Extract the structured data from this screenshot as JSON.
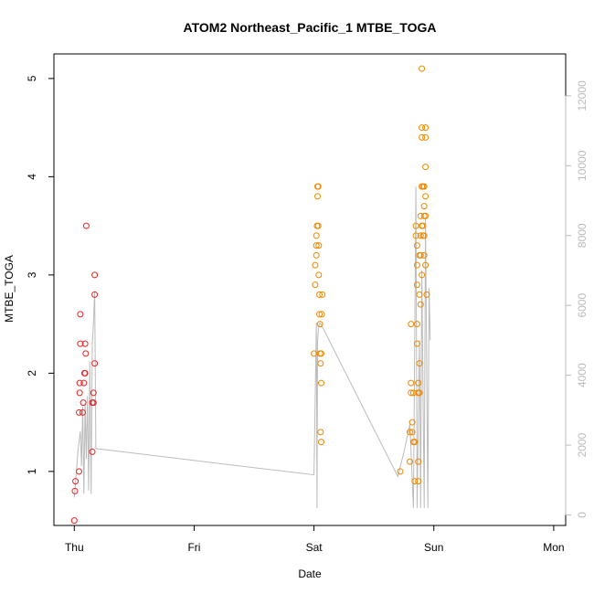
{
  "chart_data": {
    "type": "scatter",
    "title": "ATOM2 Northeast_Pacific_1 MTBE_TOGA",
    "xlabel": "Date",
    "ylabel": "MTBE_TOGA",
    "x_ticks": [
      "Thu",
      "Fri",
      "Sat",
      "Sun",
      "Mon"
    ],
    "xlim_days": [
      -0.17,
      4.1
    ],
    "ylim": [
      0.45,
      5.25
    ],
    "y_ticks": [
      1,
      2,
      3,
      4,
      5
    ],
    "secondary_axis": {
      "ylim": [
        -300,
        13200
      ],
      "ticks": [
        0,
        2000,
        4000,
        6000,
        8000,
        10000,
        12000
      ],
      "color": "#bbbbbb",
      "line_series": {
        "color": "#bbbbbb",
        "points": [
          [
            0.0,
            500
          ],
          [
            0.01,
            900
          ],
          [
            0.03,
            1800
          ],
          [
            0.05,
            2400
          ],
          [
            0.06,
            1400
          ],
          [
            0.07,
            3100
          ],
          [
            0.08,
            600
          ],
          [
            0.09,
            3200
          ],
          [
            0.1,
            1600
          ],
          [
            0.11,
            3400
          ],
          [
            0.12,
            700
          ],
          [
            0.13,
            4400
          ],
          [
            0.14,
            600
          ],
          [
            0.15,
            4900
          ],
          [
            0.16,
            5500
          ],
          [
            0.17,
            6400
          ],
          [
            0.18,
            1900
          ],
          [
            2.0,
            1150
          ],
          [
            2.02,
            5500
          ],
          [
            2.025,
            200
          ],
          [
            2.03,
            5000
          ],
          [
            2.04,
            5400
          ],
          [
            2.05,
            5500
          ],
          [
            2.06,
            5450
          ],
          [
            2.7,
            1100
          ],
          [
            2.75,
            1800
          ],
          [
            2.8,
            2600
          ],
          [
            2.83,
            200
          ],
          [
            2.85,
            9400
          ],
          [
            2.86,
            200
          ],
          [
            2.88,
            5000
          ],
          [
            2.89,
            200
          ],
          [
            2.9,
            7000
          ],
          [
            2.92,
            200
          ],
          [
            2.93,
            8500
          ],
          [
            2.95,
            200
          ],
          [
            2.96,
            6500
          ],
          [
            2.97,
            5000
          ]
        ]
      }
    },
    "series": [
      {
        "color": "#ee2222",
        "points": [
          [
            0.0,
            0.5
          ],
          [
            0.005,
            0.8
          ],
          [
            0.01,
            0.9
          ],
          [
            0.04,
            1.0
          ],
          [
            0.04,
            1.6
          ],
          [
            0.045,
            1.8
          ],
          [
            0.045,
            1.9
          ],
          [
            0.05,
            2.3
          ],
          [
            0.05,
            2.6
          ],
          [
            0.07,
            1.6
          ],
          [
            0.075,
            1.7
          ],
          [
            0.08,
            1.9
          ],
          [
            0.085,
            2.0
          ],
          [
            0.09,
            2.0
          ],
          [
            0.09,
            2.3
          ],
          [
            0.095,
            2.2
          ],
          [
            0.1,
            3.5
          ],
          [
            0.15,
            1.2
          ],
          [
            0.15,
            1.7
          ],
          [
            0.16,
            1.7
          ],
          [
            0.16,
            1.8
          ],
          [
            0.17,
            2.1
          ],
          [
            0.17,
            2.8
          ],
          [
            0.17,
            3.0
          ]
        ]
      },
      {
        "color": "#ee8800",
        "points": [
          [
            2.0,
            2.2
          ],
          [
            2.01,
            2.9
          ],
          [
            2.01,
            3.1
          ],
          [
            2.02,
            3.2
          ],
          [
            2.02,
            3.3
          ],
          [
            2.02,
            3.4
          ],
          [
            2.025,
            3.5
          ],
          [
            2.03,
            3.8
          ],
          [
            2.03,
            3.9
          ],
          [
            2.035,
            3.9
          ],
          [
            2.035,
            3.5
          ],
          [
            2.04,
            3.3
          ],
          [
            2.04,
            3.0
          ],
          [
            2.045,
            2.8
          ],
          [
            2.045,
            2.6
          ],
          [
            2.05,
            2.5
          ],
          [
            2.05,
            2.2
          ],
          [
            2.055,
            2.1
          ],
          [
            2.055,
            1.4
          ],
          [
            2.06,
            1.3
          ],
          [
            2.06,
            1.9
          ],
          [
            2.06,
            2.2
          ],
          [
            2.065,
            2.6
          ],
          [
            2.07,
            2.8
          ],
          [
            2.72,
            1.0
          ],
          [
            2.8,
            1.1
          ],
          [
            2.8,
            1.4
          ],
          [
            2.81,
            1.8
          ],
          [
            2.81,
            1.9
          ],
          [
            2.81,
            2.5
          ],
          [
            2.82,
            1.5
          ],
          [
            2.82,
            1.4
          ],
          [
            2.83,
            1.3
          ],
          [
            2.83,
            1.8
          ],
          [
            2.84,
            1.3
          ],
          [
            2.84,
            0.9
          ],
          [
            2.85,
            3.5
          ],
          [
            2.85,
            3.4
          ],
          [
            2.86,
            3.1
          ],
          [
            2.86,
            3.3
          ],
          [
            2.86,
            2.3
          ],
          [
            2.86,
            2.9
          ],
          [
            2.86,
            2.5
          ],
          [
            2.87,
            1.9
          ],
          [
            2.87,
            1.8
          ],
          [
            2.87,
            1.1
          ],
          [
            2.87,
            0.9
          ],
          [
            2.88,
            2.1
          ],
          [
            2.88,
            1.8
          ],
          [
            2.88,
            3.2
          ],
          [
            2.88,
            2.8
          ],
          [
            2.89,
            3.6
          ],
          [
            2.89,
            3.4
          ],
          [
            2.89,
            3.2
          ],
          [
            2.89,
            2.7
          ],
          [
            2.9,
            3.9
          ],
          [
            2.9,
            4.4
          ],
          [
            2.9,
            4.5
          ],
          [
            2.9,
            5.1
          ],
          [
            2.9,
            3.5
          ],
          [
            2.9,
            3.0
          ],
          [
            2.91,
            3.9
          ],
          [
            2.91,
            3.5
          ],
          [
            2.91,
            3.4
          ],
          [
            2.92,
            3.9
          ],
          [
            2.92,
            3.7
          ],
          [
            2.92,
            3.6
          ],
          [
            2.92,
            3.4
          ],
          [
            2.92,
            3.2
          ],
          [
            2.93,
            4.4
          ],
          [
            2.93,
            4.5
          ],
          [
            2.93,
            4.1
          ],
          [
            2.93,
            3.8
          ],
          [
            2.93,
            3.6
          ],
          [
            2.93,
            3.1
          ],
          [
            2.94,
            2.8
          ]
        ]
      }
    ]
  }
}
